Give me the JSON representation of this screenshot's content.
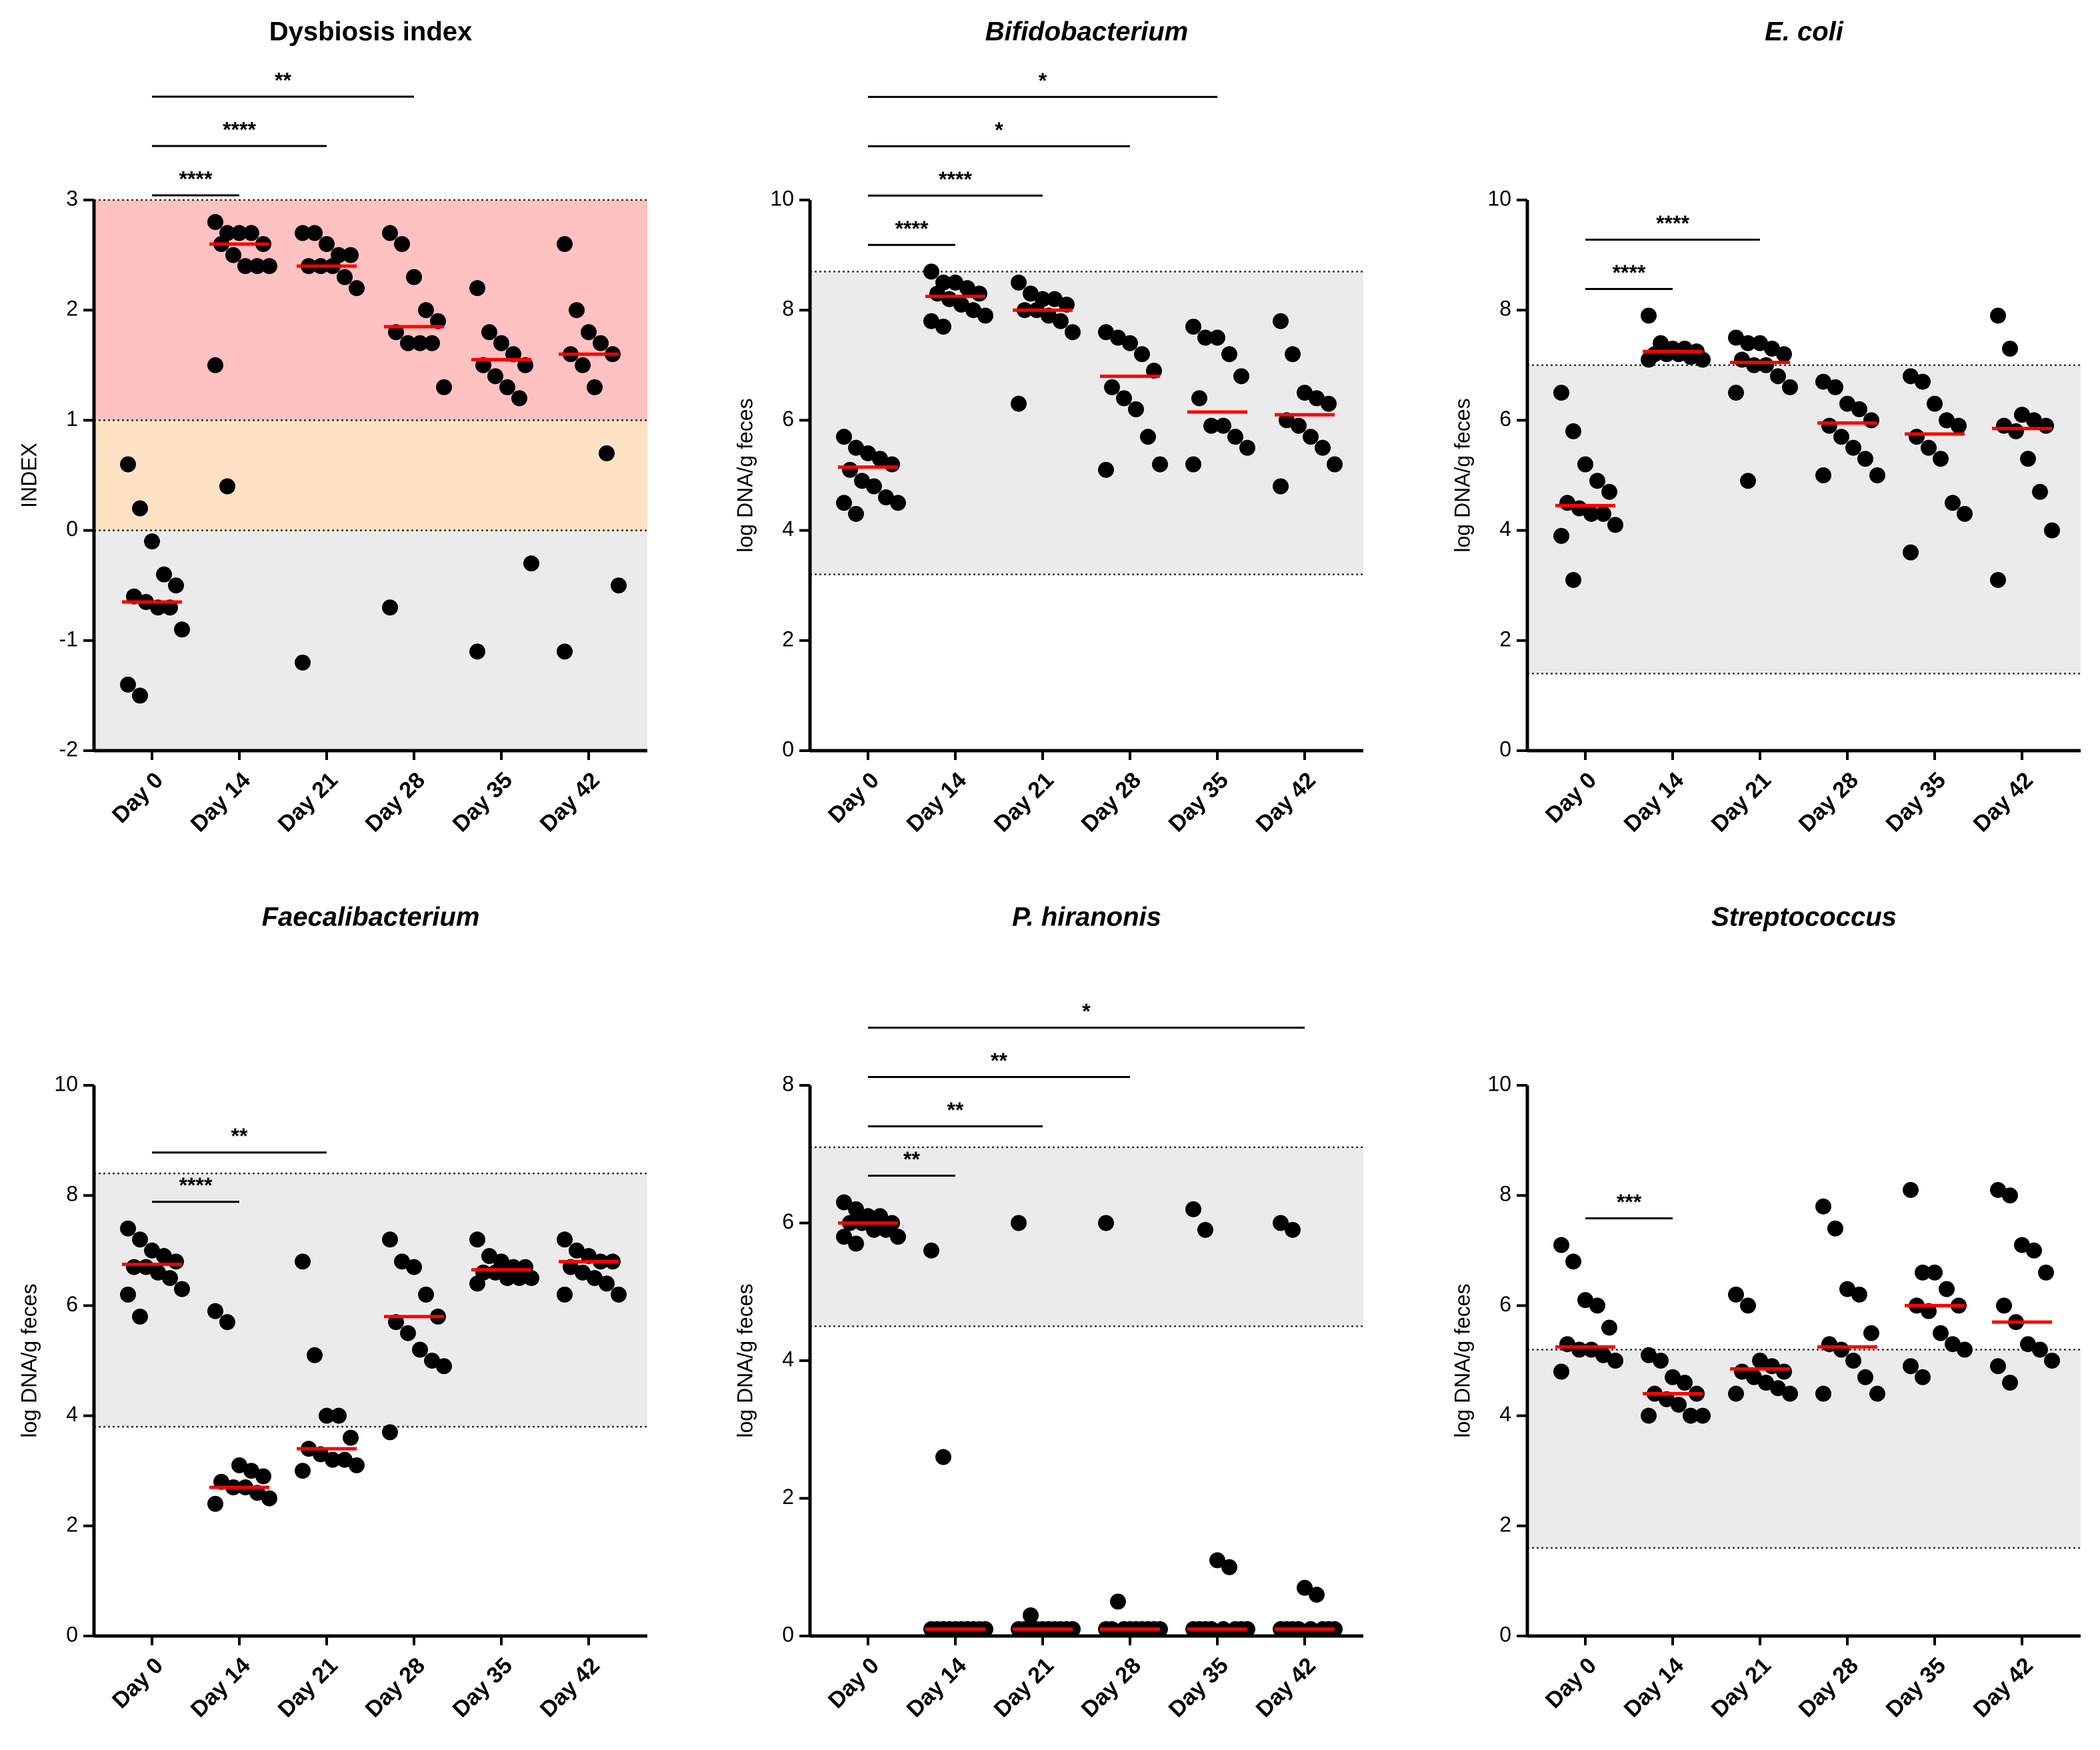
{
  "chart_data": [
    {
      "type": "dot",
      "title": "Dysbiosis index",
      "title_italic": false,
      "y_label": "INDEX",
      "categories": [
        "Day 0",
        "Day 14",
        "Day 21",
        "Day 28",
        "Day 35",
        "Day 42"
      ],
      "values": [
        [
          0.6,
          0.2,
          -0.1,
          -0.4,
          -0.5,
          -0.6,
          -0.65,
          -0.7,
          -0.7,
          -0.9,
          -1.4,
          -1.5
        ],
        [
          2.8,
          2.7,
          2.7,
          2.7,
          2.6,
          2.6,
          2.5,
          2.4,
          2.4,
          2.4,
          1.5,
          0.4
        ],
        [
          2.7,
          2.7,
          2.6,
          2.5,
          2.5,
          2.4,
          2.4,
          2.4,
          2.3,
          2.2,
          -1.2
        ],
        [
          2.7,
          2.6,
          2.3,
          2.0,
          1.9,
          1.8,
          1.7,
          1.7,
          1.7,
          1.3,
          -0.7
        ],
        [
          2.2,
          1.8,
          1.7,
          1.6,
          1.5,
          1.5,
          1.4,
          1.3,
          1.2,
          -0.3,
          -1.1
        ],
        [
          2.6,
          2.0,
          1.8,
          1.7,
          1.6,
          1.6,
          1.5,
          1.3,
          0.7,
          -0.5,
          -1.1
        ]
      ],
      "medians": [
        -0.65,
        2.6,
        2.4,
        1.85,
        1.55,
        1.6
      ],
      "ylim": [
        -2,
        3
      ],
      "yticks": [
        -2,
        -1,
        0,
        1,
        2,
        3
      ],
      "bands": [
        {
          "from": 1,
          "to": 3,
          "color": "#ffc1c1"
        },
        {
          "from": 0,
          "to": 1,
          "color": "#ffe1c4"
        },
        {
          "from": -2,
          "to": 0,
          "color": "#ebebeb"
        }
      ],
      "comparisons": [
        {
          "from": "Day 0",
          "to": "Day 14",
          "label": "****"
        },
        {
          "from": "Day 0",
          "to": "Day 21",
          "label": "****"
        },
        {
          "from": "Day 0",
          "to": "Day 28",
          "label": "**"
        }
      ],
      "point_color": "#000000",
      "median_color": "#ff0000"
    },
    {
      "type": "dot",
      "title": "Bifidobacterium",
      "title_italic": true,
      "y_label": "log DNA/g feces",
      "categories": [
        "Day 0",
        "Day 14",
        "Day 21",
        "Day 28",
        "Day 35",
        "Day 42"
      ],
      "values": [
        [
          5.7,
          5.5,
          5.4,
          5.3,
          5.2,
          5.1,
          4.9,
          4.8,
          4.6,
          4.5,
          4.5,
          4.3
        ],
        [
          8.7,
          8.5,
          8.5,
          8.4,
          8.3,
          8.3,
          8.2,
          8.1,
          8.0,
          7.9,
          7.8,
          7.7
        ],
        [
          8.5,
          8.3,
          8.2,
          8.2,
          8.1,
          8.0,
          8.0,
          7.9,
          7.8,
          7.6,
          6.3
        ],
        [
          7.6,
          7.5,
          7.4,
          7.2,
          6.9,
          6.6,
          6.4,
          6.2,
          5.7,
          5.2,
          5.1
        ],
        [
          7.7,
          7.5,
          7.5,
          7.2,
          6.8,
          6.4,
          5.9,
          5.9,
          5.7,
          5.5,
          5.2
        ],
        [
          7.8,
          7.2,
          6.5,
          6.4,
          6.3,
          6.0,
          5.9,
          5.7,
          5.5,
          5.2,
          4.8
        ]
      ],
      "medians": [
        5.15,
        8.25,
        8.0,
        6.8,
        6.15,
        6.1
      ],
      "ylim": [
        0,
        10
      ],
      "yticks": [
        0,
        2,
        4,
        6,
        8,
        10
      ],
      "bands": [
        {
          "from": 3.2,
          "to": 8.7,
          "color": "#ebebeb"
        }
      ],
      "comparisons": [
        {
          "from": "Day 0",
          "to": "Day 14",
          "label": "****"
        },
        {
          "from": "Day 0",
          "to": "Day 21",
          "label": "****"
        },
        {
          "from": "Day 0",
          "to": "Day 28",
          "label": "*"
        },
        {
          "from": "Day 0",
          "to": "Day 35",
          "label": "*"
        }
      ],
      "point_color": "#000000",
      "median_color": "#ff0000"
    },
    {
      "type": "dot",
      "title": "E. coli",
      "title_italic": true,
      "y_label": "log DNA/g feces",
      "categories": [
        "Day 0",
        "Day 14",
        "Day 21",
        "Day 28",
        "Day 35",
        "Day 42"
      ],
      "values": [
        [
          6.5,
          5.8,
          5.2,
          4.9,
          4.7,
          4.5,
          4.4,
          4.3,
          4.3,
          4.1,
          3.9,
          3.1
        ],
        [
          7.9,
          7.4,
          7.3,
          7.3,
          7.25,
          7.2,
          7.2,
          7.2,
          7.15,
          7.1,
          7.1
        ],
        [
          7.5,
          7.4,
          7.4,
          7.3,
          7.2,
          7.1,
          7.0,
          7.0,
          6.8,
          6.6,
          6.5,
          4.9
        ],
        [
          6.7,
          6.6,
          6.3,
          6.2,
          6.0,
          5.9,
          5.7,
          5.5,
          5.3,
          5.0,
          5.0
        ],
        [
          6.8,
          6.7,
          6.3,
          6.0,
          5.9,
          5.7,
          5.5,
          5.3,
          4.5,
          4.3,
          3.6
        ],
        [
          7.9,
          7.3,
          6.1,
          6.0,
          5.9,
          5.9,
          5.8,
          5.3,
          4.7,
          4.0,
          3.1
        ]
      ],
      "medians": [
        4.45,
        7.25,
        7.05,
        5.95,
        5.75,
        5.85
      ],
      "ylim": [
        0,
        10
      ],
      "yticks": [
        0,
        2,
        4,
        6,
        8,
        10
      ],
      "bands": [
        {
          "from": 1.4,
          "to": 7.0,
          "color": "#ebebeb"
        }
      ],
      "comparisons": [
        {
          "from": "Day 0",
          "to": "Day 14",
          "label": "****"
        },
        {
          "from": "Day 0",
          "to": "Day 21",
          "label": "****"
        }
      ],
      "point_color": "#000000",
      "median_color": "#ff0000"
    },
    {
      "type": "dot",
      "title": "Faecalibacterium",
      "title_italic": true,
      "y_label": "log DNA/g feces",
      "categories": [
        "Day 0",
        "Day 14",
        "Day 21",
        "Day 28",
        "Day 35",
        "Day 42"
      ],
      "values": [
        [
          7.4,
          7.2,
          7.0,
          6.9,
          6.8,
          6.7,
          6.7,
          6.6,
          6.5,
          6.3,
          6.2,
          5.8
        ],
        [
          5.9,
          5.7,
          3.1,
          3.0,
          2.9,
          2.8,
          2.7,
          2.7,
          2.6,
          2.5,
          2.4
        ],
        [
          6.8,
          5.1,
          4.0,
          4.0,
          3.6,
          3.4,
          3.3,
          3.2,
          3.2,
          3.1,
          3.0
        ],
        [
          7.2,
          6.8,
          6.7,
          6.2,
          5.8,
          5.7,
          5.5,
          5.2,
          5.0,
          4.9,
          3.7
        ],
        [
          7.2,
          6.9,
          6.8,
          6.7,
          6.7,
          6.6,
          6.6,
          6.5,
          6.5,
          6.5,
          6.4
        ],
        [
          7.2,
          7.0,
          6.9,
          6.8,
          6.8,
          6.7,
          6.6,
          6.5,
          6.4,
          6.2,
          6.2
        ]
      ],
      "medians": [
        6.75,
        2.7,
        3.4,
        5.8,
        6.65,
        6.8
      ],
      "ylim": [
        0,
        10
      ],
      "yticks": [
        0,
        2,
        4,
        6,
        8,
        10
      ],
      "bands": [
        {
          "from": 3.8,
          "to": 8.4,
          "color": "#ebebeb"
        }
      ],
      "comparisons": [
        {
          "from": "Day 0",
          "to": "Day 14",
          "label": "****"
        },
        {
          "from": "Day 0",
          "to": "Day 21",
          "label": "**"
        }
      ],
      "point_color": "#000000",
      "median_color": "#ff0000"
    },
    {
      "type": "dot",
      "title": "P. hiranonis",
      "title_italic": true,
      "y_label": "log DNA/g feces",
      "categories": [
        "Day 0",
        "Day 14",
        "Day 21",
        "Day 28",
        "Day 35",
        "Day 42"
      ],
      "values": [
        [
          6.3,
          6.2,
          6.1,
          6.1,
          6.0,
          6.0,
          6.0,
          5.9,
          5.9,
          5.8,
          5.8,
          5.7
        ],
        [
          5.6,
          2.6,
          0.1,
          0.1,
          0.1,
          0.1,
          0.1,
          0.1,
          0.1,
          0.1,
          0.1,
          0.1
        ],
        [
          6.0,
          0.3,
          0.1,
          0.1,
          0.1,
          0.1,
          0.1,
          0.1,
          0.1,
          0.1,
          0.1,
          0.1
        ],
        [
          6.0,
          0.5,
          0.1,
          0.1,
          0.1,
          0.1,
          0.1,
          0.1,
          0.1,
          0.1,
          0.1
        ],
        [
          6.2,
          5.9,
          1.1,
          1.0,
          0.1,
          0.1,
          0.1,
          0.1,
          0.1,
          0.1,
          0.1,
          0.1
        ],
        [
          6.0,
          5.9,
          0.7,
          0.6,
          0.1,
          0.1,
          0.1,
          0.1,
          0.1,
          0.1,
          0.1,
          0.1
        ]
      ],
      "medians": [
        6.0,
        0.1,
        0.1,
        0.1,
        0.1,
        0.1
      ],
      "ylim": [
        0,
        8
      ],
      "yticks": [
        0,
        2,
        4,
        6,
        8
      ],
      "bands": [
        {
          "from": 4.5,
          "to": 7.1,
          "color": "#ebebeb"
        }
      ],
      "comparisons": [
        {
          "from": "Day 0",
          "to": "Day 14",
          "label": "**"
        },
        {
          "from": "Day 0",
          "to": "Day 21",
          "label": "**"
        },
        {
          "from": "Day 0",
          "to": "Day 28",
          "label": "**"
        },
        {
          "from": "Day 0",
          "to": "Day 42",
          "label": "*"
        }
      ],
      "point_color": "#000000",
      "median_color": "#ff0000"
    },
    {
      "type": "dot",
      "title": "Streptococcus",
      "title_italic": true,
      "y_label": "log DNA/g feces",
      "categories": [
        "Day 0",
        "Day 14",
        "Day 21",
        "Day 28",
        "Day 35",
        "Day 42"
      ],
      "values": [
        [
          7.1,
          6.8,
          6.1,
          6.0,
          5.6,
          5.3,
          5.2,
          5.2,
          5.1,
          5.0,
          4.8
        ],
        [
          5.1,
          5.0,
          4.7,
          4.6,
          4.4,
          4.4,
          4.3,
          4.2,
          4.0,
          4.0,
          4.0
        ],
        [
          6.2,
          6.0,
          5.0,
          4.9,
          4.8,
          4.8,
          4.7,
          4.6,
          4.5,
          4.4,
          4.4
        ],
        [
          7.8,
          7.4,
          6.3,
          6.2,
          5.5,
          5.3,
          5.2,
          5.0,
          4.7,
          4.4,
          4.4
        ],
        [
          8.1,
          6.6,
          6.6,
          6.3,
          6.0,
          6.0,
          5.9,
          5.5,
          5.3,
          5.2,
          4.9,
          4.7
        ],
        [
          8.1,
          8.0,
          7.1,
          7.0,
          6.6,
          6.0,
          5.7,
          5.3,
          5.2,
          5.0,
          4.9,
          4.6
        ]
      ],
      "medians": [
        5.25,
        4.4,
        4.85,
        5.25,
        6.0,
        5.7
      ],
      "ylim": [
        0,
        10
      ],
      "yticks": [
        0,
        2,
        4,
        6,
        8,
        10
      ],
      "bands": [
        {
          "from": 1.6,
          "to": 5.2,
          "color": "#ebebeb"
        }
      ],
      "comparisons": [
        {
          "from": "Day 0",
          "to": "Day 14",
          "label": "***"
        }
      ],
      "point_color": "#000000",
      "median_color": "#ff0000"
    }
  ]
}
